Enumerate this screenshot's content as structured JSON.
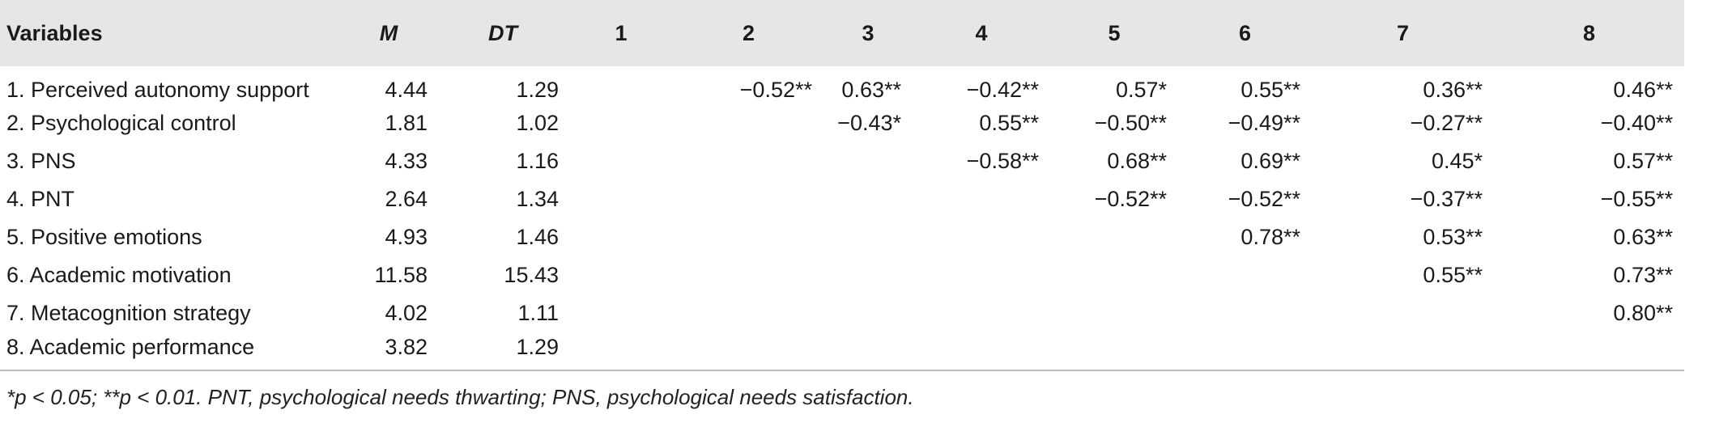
{
  "table": {
    "headers": [
      "Variables",
      "M",
      "DT",
      "1",
      "2",
      "3",
      "4",
      "5",
      "6",
      "7",
      "8"
    ],
    "rows": [
      {
        "variable": "1. Perceived autonomy support",
        "m": "4.44",
        "dt": "1.29",
        "c1": "",
        "c2": "−0.52**",
        "c3": "0.63**",
        "c4": "−0.42**",
        "c5": "0.57*",
        "c6": "0.55**",
        "c7": "0.36**",
        "c8": "0.46**"
      },
      {
        "variable": "2. Psychological control",
        "m": "1.81",
        "dt": "1.02",
        "c1": "",
        "c2": "",
        "c3": "−0.43*",
        "c4": "0.55**",
        "c5": "−0.50**",
        "c6": "−0.49**",
        "c7": "−0.27**",
        "c8": "−0.40**"
      },
      {
        "variable": "3. PNS",
        "m": "4.33",
        "dt": "1.16",
        "c1": "",
        "c2": "",
        "c3": "",
        "c4": "−0.58**",
        "c5": "0.68**",
        "c6": "0.69**",
        "c7": "0.45*",
        "c8": "0.57**"
      },
      {
        "variable": "4. PNT",
        "m": "2.64",
        "dt": "1.34",
        "c1": "",
        "c2": "",
        "c3": "",
        "c4": "",
        "c5": "−0.52**",
        "c6": "−0.52**",
        "c7": "−0.37**",
        "c8": "−0.55**"
      },
      {
        "variable": "5. Positive emotions",
        "m": "4.93",
        "dt": "1.46",
        "c1": "",
        "c2": "",
        "c3": "",
        "c4": "",
        "c5": "",
        "c6": "0.78**",
        "c7": "0.53**",
        "c8": "0.63**"
      },
      {
        "variable": "6. Academic motivation",
        "m": "11.58",
        "dt": "15.43",
        "c1": "",
        "c2": "",
        "c3": "",
        "c4": "",
        "c5": "",
        "c6": "",
        "c7": "0.55**",
        "c8": "0.73**"
      },
      {
        "variable": "7. Metacognition strategy",
        "m": "4.02",
        "dt": "1.11",
        "c1": "",
        "c2": "",
        "c3": "",
        "c4": "",
        "c5": "",
        "c6": "",
        "c7": "",
        "c8": "0.80**"
      },
      {
        "variable": "8. Academic performance",
        "m": "3.82",
        "dt": "1.29",
        "c1": "",
        "c2": "",
        "c3": "",
        "c4": "",
        "c5": "",
        "c6": "",
        "c7": "",
        "c8": ""
      }
    ]
  },
  "footnote": "*p < 0.05; **p < 0.01. PNT, psychological needs thwarting; PNS, psychological needs satisfaction."
}
